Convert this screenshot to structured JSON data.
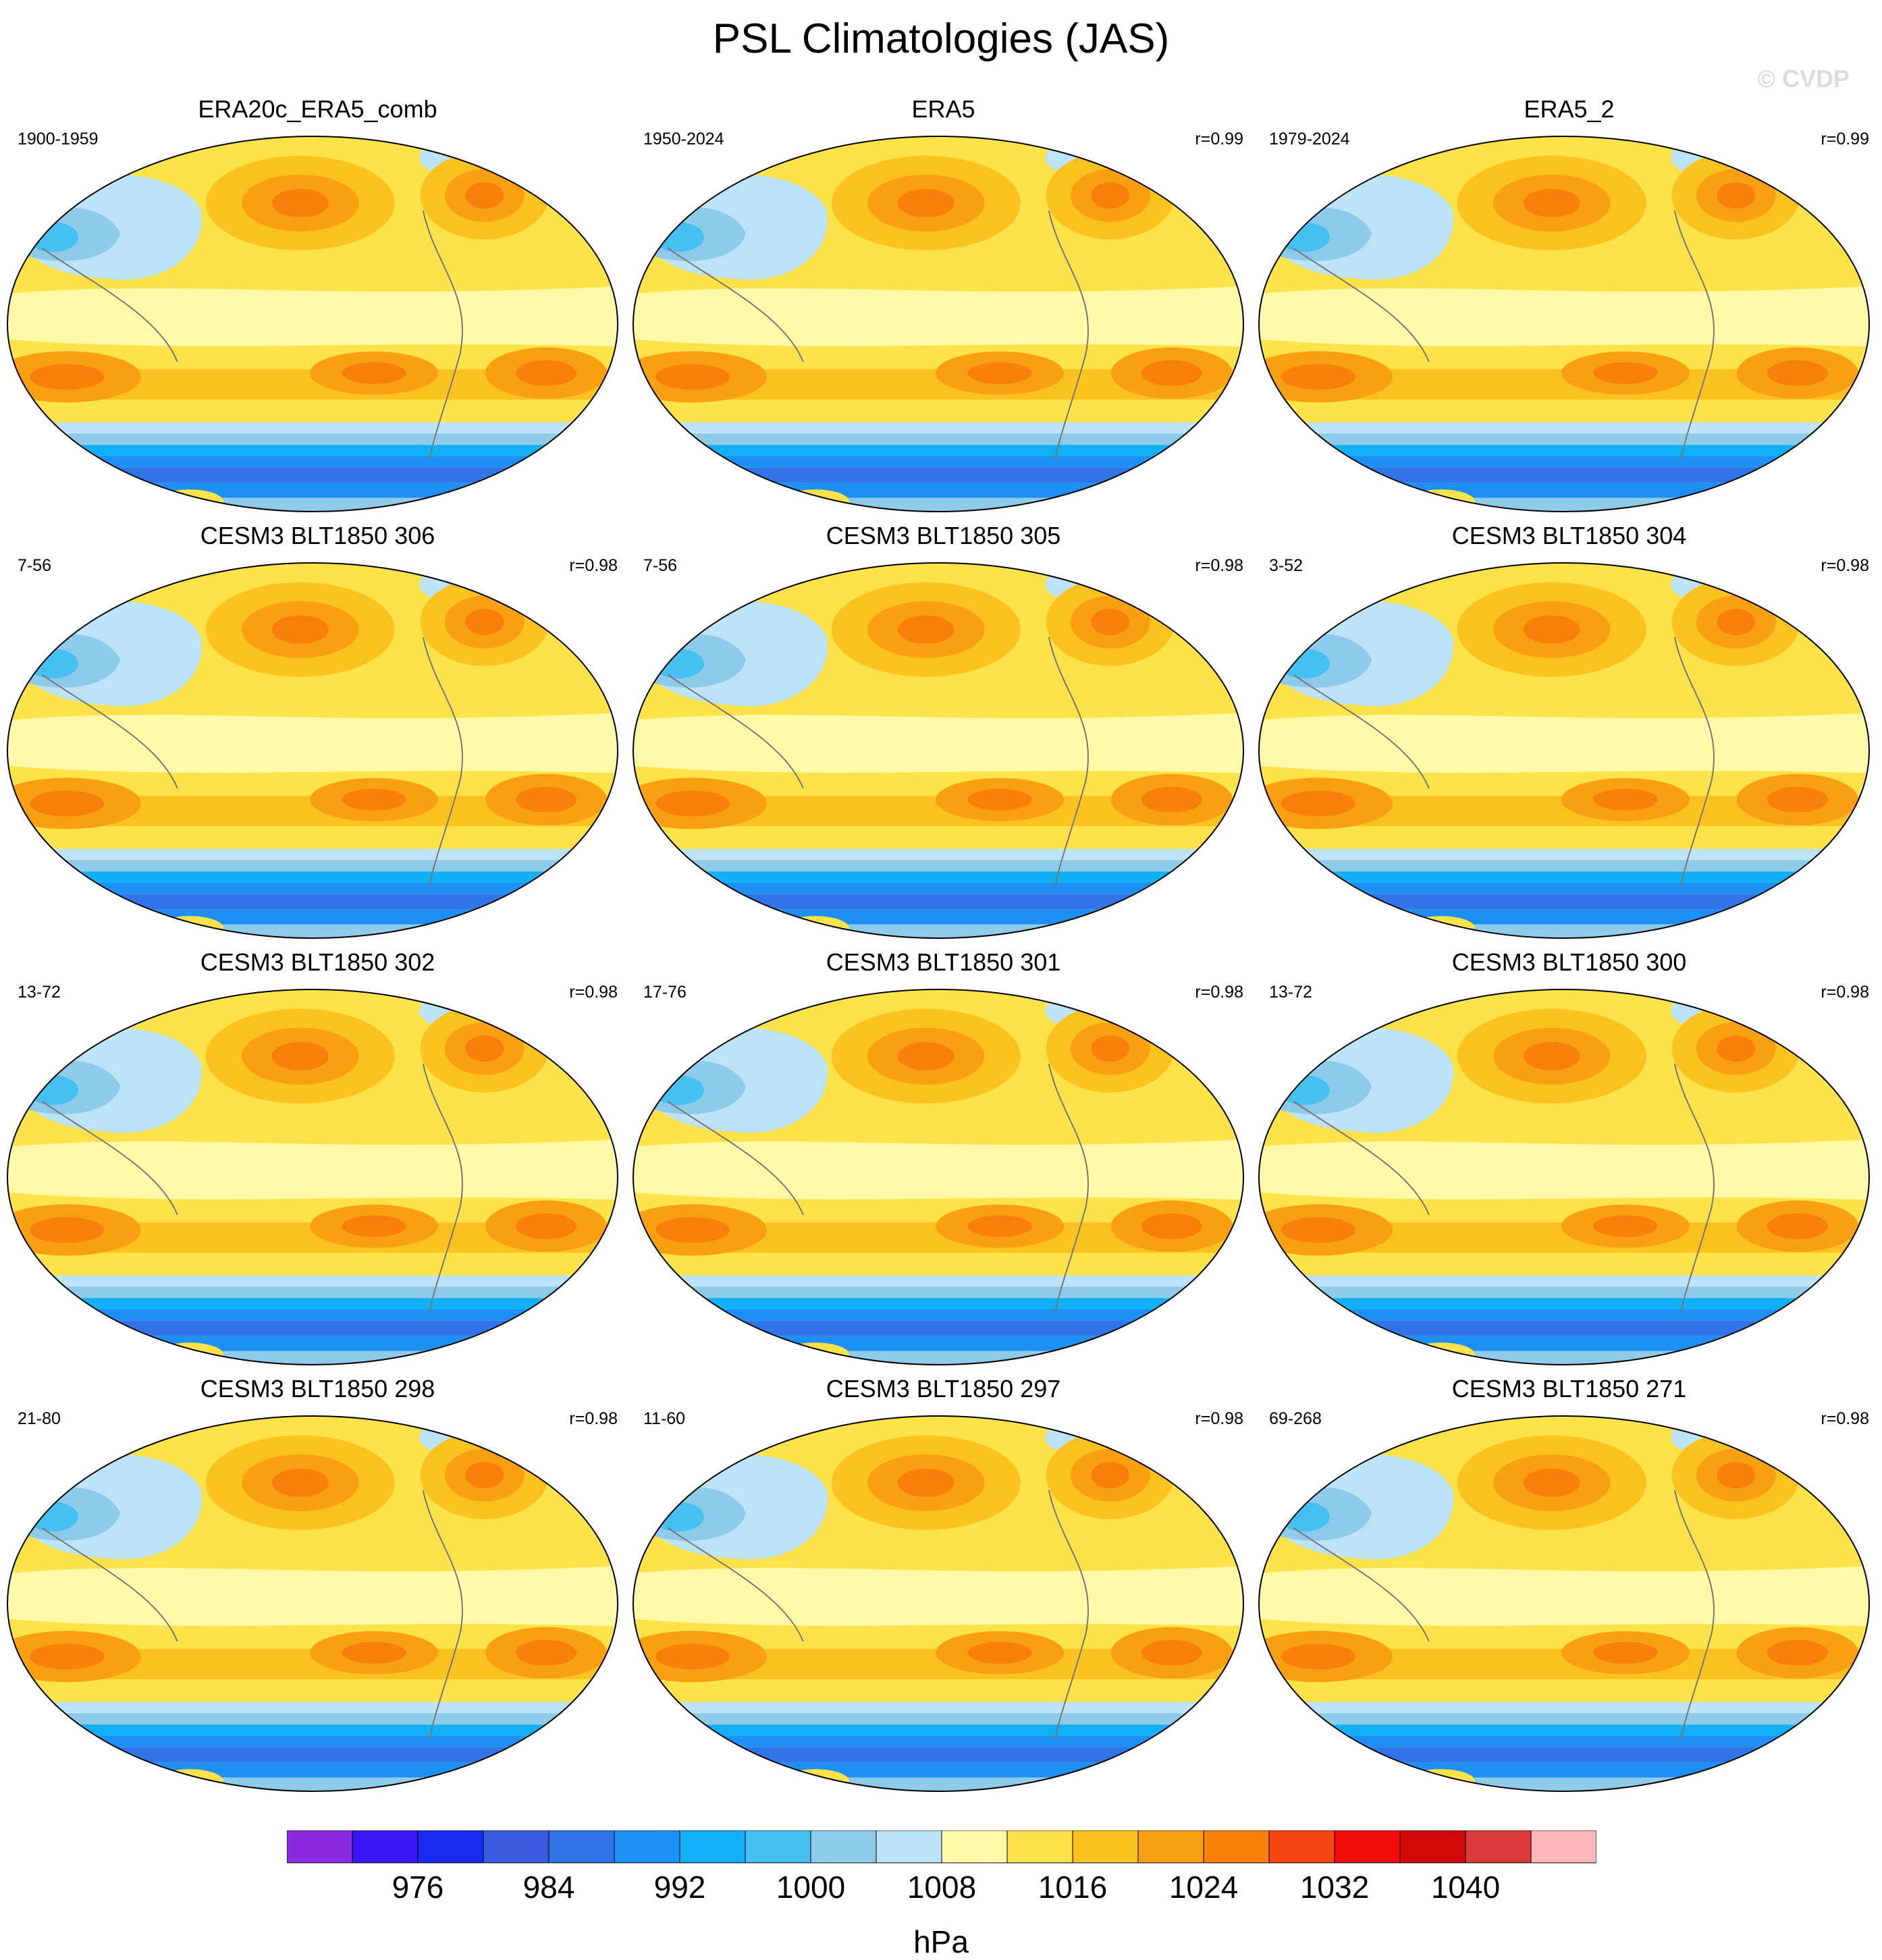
{
  "title": "PSL Climatologies (JAS)",
  "watermark": "© CVDP",
  "panels": [
    {
      "title": "ERA20c_ERA5_comb",
      "years": "1900-1959",
      "r": ""
    },
    {
      "title": "ERA5",
      "years": "1950-2024",
      "r": "r=0.99"
    },
    {
      "title": "ERA5_2",
      "years": "1979-2024",
      "r": "r=0.99"
    },
    {
      "title": "CESM3 BLT1850 306",
      "years": "7-56",
      "r": "r=0.98"
    },
    {
      "title": "CESM3 BLT1850 305",
      "years": "7-56",
      "r": "r=0.98"
    },
    {
      "title": "CESM3 BLT1850 304",
      "years": "3-52",
      "r": "r=0.98"
    },
    {
      "title": "CESM3 BLT1850 302",
      "years": "13-72",
      "r": "r=0.98"
    },
    {
      "title": "CESM3 BLT1850 301",
      "years": "17-76",
      "r": "r=0.98"
    },
    {
      "title": "CESM3 BLT1850 300",
      "years": "13-72",
      "r": "r=0.98"
    },
    {
      "title": "CESM3 BLT1850 298",
      "years": "21-80",
      "r": "r=0.98"
    },
    {
      "title": "CESM3 BLT1850 297",
      "years": "11-60",
      "r": "r=0.98"
    },
    {
      "title": "CESM3 BLT1850 271",
      "years": "69-268",
      "r": "r=0.98"
    }
  ],
  "colorbar": {
    "units": "hPa",
    "colors": [
      "#8a2be2",
      "#3a16f5",
      "#1a2bf0",
      "#3a5be0",
      "#2f74e8",
      "#1e8ff4",
      "#12b0f5",
      "#45c0f0",
      "#8ecbea",
      "#bde3f7",
      "#fffaa8",
      "#fde24a",
      "#fbc21f",
      "#f9a012",
      "#f87f0b",
      "#f5460f",
      "#f50a0a",
      "#d00808",
      "#dc3a3a",
      "#fbb8bb"
    ],
    "tick_labels": [
      "976",
      "984",
      "992",
      "1000",
      "1008",
      "1016",
      "1024",
      "1032",
      "1040"
    ],
    "tick_after_box": [
      2,
      4,
      6,
      8,
      10,
      12,
      14,
      16,
      18
    ]
  }
}
